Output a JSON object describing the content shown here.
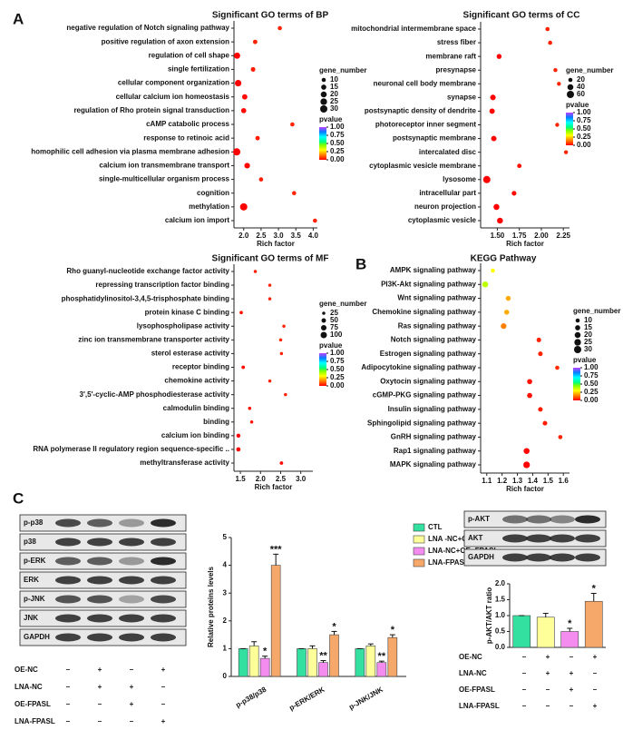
{
  "panels": {
    "a": "A",
    "b": "B",
    "c": "C"
  },
  "blots": {
    "left": [
      "p-p38",
      "p38",
      "p-ERK",
      "ERK",
      "p-JNK",
      "JNK",
      "GAPDH"
    ],
    "right": [
      "p-AKT",
      "AKT",
      "GAPDH"
    ]
  },
  "treatments": {
    "left": [
      {
        "label": "OE-NC",
        "marks": [
          "–",
          "+",
          "–",
          "+"
        ]
      },
      {
        "label": "LNA-NC",
        "marks": [
          "–",
          "+",
          "+",
          "–"
        ]
      },
      {
        "label": "OE-FPASL",
        "marks": [
          "–",
          "–",
          "+",
          "–"
        ]
      },
      {
        "label": "LNA-FPASL",
        "marks": [
          "–",
          "–",
          "–",
          "+"
        ]
      }
    ],
    "right": [
      {
        "label": "OE-NC",
        "marks": [
          "–",
          "+",
          "–",
          "+"
        ]
      },
      {
        "label": "LNA-NC",
        "marks": [
          "–",
          "+",
          "+",
          "–"
        ]
      },
      {
        "label": "OE-FPASL",
        "marks": [
          "–",
          "–",
          "+",
          "–"
        ]
      },
      {
        "label": "LNA-FPASL",
        "marks": [
          "–",
          "–",
          "–",
          "+"
        ]
      }
    ]
  },
  "chart_data": [
    {
      "type": "dot",
      "title": "Significant GO terms of BP",
      "x_label": "Rich factor",
      "categories": [
        "negative regulation of Notch signaling pathway",
        "positive regulation of axon extension",
        "regulation of cell shape",
        "single fertilization",
        "cellular component organization",
        "cellular calcium ion homeostasis",
        "regulation of Rho protein signal transduction",
        "cAMP catabolic process",
        "response to retinoic acid",
        "homophilic cell adhesion via plasma membrane adhesion",
        "calcium ion transmembrane transport",
        "single-multicellular organism process",
        "cognition",
        "methylation",
        "calcium ion import"
      ],
      "values": [
        3.04,
        2.33,
        1.81,
        2.27,
        1.84,
        2.03,
        2.0,
        3.4,
        2.4,
        1.8,
        2.1,
        2.5,
        3.45,
        2.0,
        4.05
      ],
      "sizes": [
        10,
        11,
        22,
        12,
        24,
        16,
        15,
        10,
        11,
        30,
        18,
        10,
        10,
        30,
        10
      ],
      "pvalues": [
        0.04,
        0.04,
        0.001,
        0.03,
        0.001,
        0.01,
        0.01,
        0.04,
        0.03,
        0.0001,
        0.005,
        0.03,
        0.04,
        0.0001,
        0.04
      ],
      "xlim": [
        1.72,
        4.12
      ],
      "xticks": [
        {
          "value": 2.0,
          "label": "2.0"
        },
        2.5,
        {
          "value": 3.0,
          "label": "3.0"
        },
        3.5,
        {
          "value": 4.0,
          "label": "4.0"
        }
      ],
      "size_legend_title": "gene_number",
      "size_legend": [
        10,
        15,
        20,
        25,
        30
      ],
      "color_legend_title": "pvalue",
      "color_ticks": [
        {
          "value": 1,
          "label": "1.00"
        },
        0.75,
        {
          "value": 0.5,
          "label": "0.50"
        },
        0.25,
        {
          "value": 0,
          "label": "0.00"
        }
      ]
    },
    {
      "type": "dot",
      "title": "Significant GO terms of CC",
      "x_label": "Rich factor",
      "categories": [
        "mitochondrial intermembrane space",
        "stress fiber",
        "membrane raft",
        "presynapse",
        "neuronal cell body membrane",
        "synapse",
        "postsynaptic density of dendrite",
        "photoreceptor inner segment",
        "postsynaptic membrane",
        "intercalated disc",
        "cytoplasmic vesicle membrane",
        "lysosome",
        "intracellular part",
        "neuron projection",
        "cytoplasmic vesicle"
      ],
      "values": [
        2.07,
        2.1,
        1.52,
        2.16,
        2.2,
        1.45,
        1.44,
        2.18,
        1.46,
        2.28,
        1.75,
        1.38,
        1.69,
        1.49,
        1.53
      ],
      "sizes": [
        20,
        20,
        28,
        18,
        18,
        35,
        33,
        18,
        33,
        18,
        22,
        60,
        25,
        40,
        40
      ],
      "pvalues": [
        0.04,
        0.04,
        0.005,
        0.04,
        0.04,
        0.002,
        0.002,
        0.04,
        0.002,
        0.04,
        0.02,
        0.0001,
        0.01,
        0.001,
        0.001
      ],
      "xlim": [
        1.31,
        2.32
      ],
      "xticks": [
        {
          "value": 1.5,
          "label": "1.50"
        },
        1.75,
        {
          "value": 2.0,
          "label": "2.00"
        },
        2.25
      ],
      "size_legend_title": "gene_number",
      "size_legend": [
        20,
        40,
        60
      ],
      "color_legend_title": "pvalue",
      "color_ticks": [
        {
          "value": 1,
          "label": "1.00"
        },
        0.75,
        {
          "value": 0.5,
          "label": "0.50"
        },
        0.25,
        {
          "value": 0,
          "label": "0.00"
        }
      ]
    },
    {
      "type": "dot",
      "title": "Significant GO terms of MF",
      "x_label": "Rich factor",
      "categories": [
        "Rho guanyl-nucleotide exchange factor activity",
        "repressing transcription factor binding",
        "phosphatidylinositol-3,4,5-trisphosphate binding",
        "protein kinase C binding",
        "lysophospholipase activity",
        "zinc ion transmembrane transporter activity",
        "sterol esterase activity",
        "receptor binding",
        "chemokine activity",
        "3',5'-cyclic-AMP phosphodiesterase activity",
        "calmodulin binding",
        "binding",
        "calcium ion binding",
        "RNA polymerase II regulatory region sequence-specific ..",
        "methyltransferase activity"
      ],
      "values": [
        1.87,
        2.23,
        2.23,
        1.52,
        2.58,
        2.5,
        2.52,
        1.57,
        2.23,
        2.62,
        1.73,
        1.78,
        1.45,
        1.45,
        2.52
      ],
      "sizes": [
        25,
        25,
        25,
        28,
        25,
        25,
        25,
        30,
        25,
        25,
        26,
        25,
        40,
        45,
        30
      ],
      "pvalues": [
        0.03,
        0.04,
        0.04,
        0.02,
        0.04,
        0.04,
        0.04,
        0.01,
        0.04,
        0.04,
        0.02,
        0.02,
        0.001,
        0.001,
        0.01
      ],
      "xlim": [
        1.34,
        3.3
      ],
      "xticks": [
        1.5,
        {
          "value": 2.0,
          "label": "2.0"
        },
        2.5,
        {
          "value": 3.0,
          "label": "3.0"
        }
      ],
      "size_legend_title": "gene_number",
      "size_legend": [
        25,
        50,
        75,
        100
      ],
      "color_legend_title": "pvalue",
      "color_ticks": [
        {
          "value": 1,
          "label": "1.00"
        },
        0.75,
        {
          "value": 0.5,
          "label": "0.50"
        },
        0.25,
        {
          "value": 0,
          "label": "0.00"
        }
      ]
    },
    {
      "type": "dot",
      "title": "KEGG Pathway",
      "x_label": "Rich factor",
      "categories": [
        "AMPK signaling pathway",
        "PI3K-Akt signaling pathway",
        "Wnt signaling pathway",
        "Chemokine signaling pathway",
        "Ras signaling pathway",
        "Notch signaling pathway",
        "Estrogen signaling pathway",
        "Adipocytokine signaling pathway",
        "Oxytocin signaling pathway",
        "cGMP-PKG signaling pathway",
        "Insulin signaling pathway",
        "Sphingolipid signaling pathway",
        "GnRH signaling pathway",
        "Rap1 signaling pathway",
        "MAPK signaling pathway"
      ],
      "values": [
        1.14,
        1.09,
        1.24,
        1.23,
        1.21,
        1.44,
        1.45,
        1.56,
        1.38,
        1.38,
        1.45,
        1.48,
        1.58,
        1.36,
        1.36
      ],
      "sizes": [
        10,
        20,
        14,
        14,
        18,
        12,
        12,
        10,
        15,
        15,
        12,
        12,
        10,
        20,
        25
      ],
      "pvalues": [
        0.3,
        0.38,
        0.2,
        0.2,
        0.15,
        0.04,
        0.04,
        0.05,
        0.02,
        0.02,
        0.03,
        0.03,
        0.04,
        0.005,
        0.001
      ],
      "xlim": [
        1.06,
        1.64
      ],
      "xticks": [
        1.1,
        1.2,
        1.3,
        1.4,
        1.5,
        1.6
      ],
      "size_legend_title": "gene_number",
      "size_legend": [
        10,
        15,
        20,
        25,
        30
      ],
      "color_legend_title": "pvalue",
      "color_ticks": [
        {
          "value": 1,
          "label": "1.00"
        },
        0.75,
        {
          "value": 0.5,
          "label": "0.50"
        },
        0.25,
        {
          "value": 0,
          "label": "0.00"
        }
      ]
    },
    {
      "type": "bar",
      "y_label": "Relative proteins levels",
      "categories": [
        "p-p38/p38",
        "p-ERK/ERK",
        "p-JNK/JNK"
      ],
      "series": [
        {
          "name": "CTL",
          "color": "#33e0a0",
          "values": [
            1.0,
            1.0,
            1.0
          ],
          "errors": [
            0,
            0,
            0
          ]
        },
        {
          "name": "LNA -NC+OE -NC",
          "color": "#ffff99",
          "values": [
            1.1,
            1.0,
            1.1
          ],
          "errors": [
            0.15,
            0.1,
            0.07
          ]
        },
        {
          "name": "LNA-NC+OE -FPASL",
          "color": "#f48cf0",
          "values": [
            0.65,
            0.5,
            0.5
          ],
          "errors": [
            0.08,
            0.07,
            0.05
          ],
          "annotations": [
            "*",
            "**",
            "**"
          ]
        },
        {
          "name": "LNA-FPASL+OE-NC",
          "color": "#f5a86a",
          "values": [
            4.0,
            1.5,
            1.4
          ],
          "errors": [
            0.4,
            0.12,
            0.1
          ],
          "annotations": [
            "***",
            "*",
            "*"
          ]
        }
      ],
      "ylim": [
        0,
        5
      ],
      "yticks": [
        0,
        1,
        2,
        3,
        4,
        5
      ]
    },
    {
      "type": "single-bar",
      "y_label": "p-AKT/AKT ratio",
      "values": [
        1.0,
        0.95,
        0.5,
        1.45
      ],
      "errors": [
        0,
        0.12,
        0.1,
        0.25
      ],
      "colors": [
        "#33e0a0",
        "#ffff99",
        "#f48cf0",
        "#f5a86a"
      ],
      "annotations": [
        null,
        null,
        "*",
        "*"
      ],
      "ylim": [
        0,
        2
      ],
      "yticks": [
        {
          "value": 0,
          "label": "0.0"
        },
        0.5,
        {
          "value": 1,
          "label": "1.0"
        },
        1.5,
        {
          "value": 2,
          "label": "2.0"
        }
      ]
    }
  ]
}
